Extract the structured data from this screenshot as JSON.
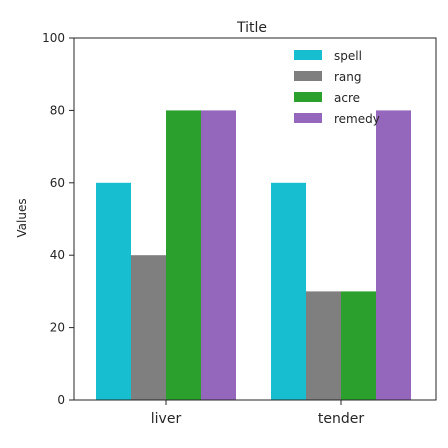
{
  "chart_data": {
    "type": "bar",
    "title": "Title",
    "xlabel": "",
    "ylabel": "Values",
    "ylim": [
      0,
      100
    ],
    "yticks": [
      0,
      20,
      40,
      60,
      80,
      100
    ],
    "categories": [
      "liver",
      "tender"
    ],
    "series": [
      {
        "name": "spell",
        "color": "#17becf",
        "values": [
          60,
          60
        ]
      },
      {
        "name": "rang",
        "color": "#7f7f7f",
        "values": [
          40,
          30
        ]
      },
      {
        "name": "acre",
        "color": "#2ca02c",
        "values": [
          80,
          30
        ]
      },
      {
        "name": "remedy",
        "color": "#9467bd",
        "values": [
          80,
          80
        ]
      }
    ],
    "legend_position": "top-right",
    "grid": false
  }
}
